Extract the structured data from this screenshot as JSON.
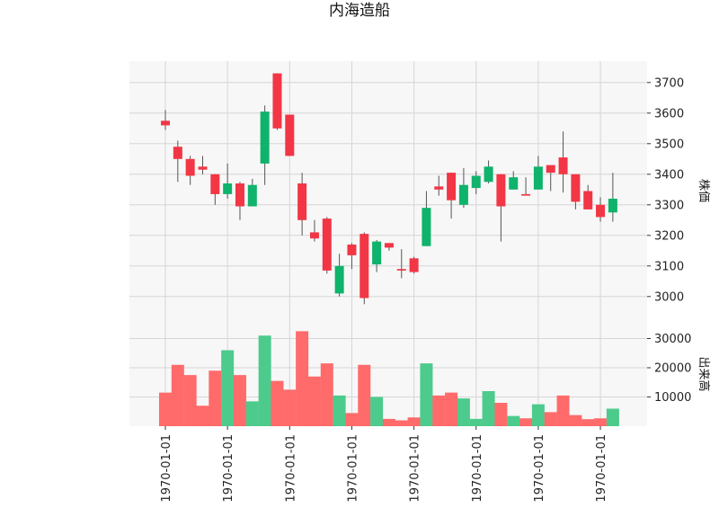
{
  "chart_data": {
    "type": "candlestick",
    "title": "内海造船",
    "up_color": "#f23645",
    "down_color": "#0fb36b",
    "up_volume_color": "#ff6b6b",
    "down_volume_color": "#4ccb8c",
    "price_panel": {
      "ylabel": "株価",
      "ylim": [
        2920,
        3770
      ],
      "yticks": [
        3000,
        3100,
        3200,
        3300,
        3400,
        3500,
        3600,
        3700
      ],
      "ytick_labels": [
        "3000",
        "3100",
        "3200",
        "3300",
        "3400",
        "3500",
        "3600",
        "3700"
      ],
      "grid": true
    },
    "volume_panel": {
      "ylabel": "出来高",
      "ylim": [
        0,
        36000
      ],
      "yticks": [
        10000,
        20000,
        30000
      ],
      "ytick_labels": [
        "10000",
        "20000",
        "30000"
      ],
      "grid": true
    },
    "xtick_positions": [
      0,
      5,
      10,
      15,
      20,
      25,
      30,
      35
    ],
    "xtick_labels": [
      "1970-01-01",
      "1970-01-01",
      "1970-01-01",
      "1970-01-01",
      "1970-01-01",
      "1970-01-01",
      "1970-01-01",
      "1970-01-01"
    ],
    "candles": [
      {
        "open": 3560,
        "high": 3610,
        "low": 3545,
        "close": 3575,
        "volume": 11500
      },
      {
        "open": 3450,
        "high": 3510,
        "low": 3375,
        "close": 3490,
        "volume": 21000
      },
      {
        "open": 3395,
        "high": 3460,
        "low": 3365,
        "close": 3450,
        "volume": 17500
      },
      {
        "open": 3415,
        "high": 3460,
        "low": 3400,
        "close": 3425,
        "volume": 7000
      },
      {
        "open": 3335,
        "high": 3400,
        "low": 3300,
        "close": 3400,
        "volume": 19000
      },
      {
        "open": 3370,
        "high": 3435,
        "low": 3320,
        "close": 3335,
        "volume": 26000
      },
      {
        "open": 3295,
        "high": 3375,
        "low": 3250,
        "close": 3370,
        "volume": 17500
      },
      {
        "open": 3365,
        "high": 3385,
        "low": 3295,
        "close": 3295,
        "volume": 8500
      },
      {
        "open": 3605,
        "high": 3625,
        "low": 3365,
        "close": 3435,
        "volume": 31000
      },
      {
        "open": 3550,
        "high": 3730,
        "low": 3545,
        "close": 3730,
        "volume": 15500
      },
      {
        "open": 3460,
        "high": 3595,
        "low": 3460,
        "close": 3595,
        "volume": 12500
      },
      {
        "open": 3250,
        "high": 3405,
        "low": 3200,
        "close": 3370,
        "volume": 32500
      },
      {
        "open": 3190,
        "high": 3250,
        "low": 3180,
        "close": 3210,
        "volume": 17000
      },
      {
        "open": 3085,
        "high": 3260,
        "low": 3075,
        "close": 3255,
        "volume": 21500
      },
      {
        "open": 3100,
        "high": 3140,
        "low": 3000,
        "close": 3010,
        "volume": 10500
      },
      {
        "open": 3135,
        "high": 3175,
        "low": 3090,
        "close": 3170,
        "volume": 4500
      },
      {
        "open": 2995,
        "high": 3210,
        "low": 2975,
        "close": 3205,
        "volume": 21000
      },
      {
        "open": 3180,
        "high": 3185,
        "low": 3080,
        "close": 3105,
        "volume": 10000
      },
      {
        "open": 3160,
        "high": 3175,
        "low": 3150,
        "close": 3175,
        "volume": 2500
      },
      {
        "open": 3085,
        "high": 3155,
        "low": 3060,
        "close": 3090,
        "volume": 2000
      },
      {
        "open": 3080,
        "high": 3130,
        "low": 3075,
        "close": 3125,
        "volume": 3000
      },
      {
        "open": 3290,
        "high": 3345,
        "low": 3165,
        "close": 3165,
        "volume": 21500
      },
      {
        "open": 3350,
        "high": 3395,
        "low": 3330,
        "close": 3360,
        "volume": 10500
      },
      {
        "open": 3315,
        "high": 3405,
        "low": 3255,
        "close": 3405,
        "volume": 11500
      },
      {
        "open": 3365,
        "high": 3420,
        "low": 3290,
        "close": 3300,
        "volume": 9500
      },
      {
        "open": 3395,
        "high": 3410,
        "low": 3335,
        "close": 3355,
        "volume": 2500
      },
      {
        "open": 3425,
        "high": 3445,
        "low": 3370,
        "close": 3375,
        "volume": 12000
      },
      {
        "open": 3295,
        "high": 3400,
        "low": 3180,
        "close": 3400,
        "volume": 8000
      },
      {
        "open": 3390,
        "high": 3410,
        "low": 3350,
        "close": 3350,
        "volume": 3500
      },
      {
        "open": 3330,
        "high": 3390,
        "low": 3330,
        "close": 3335,
        "volume": 2700
      },
      {
        "open": 3425,
        "high": 3460,
        "low": 3350,
        "close": 3350,
        "volume": 7500
      },
      {
        "open": 3405,
        "high": 3430,
        "low": 3345,
        "close": 3430,
        "volume": 4800
      },
      {
        "open": 3400,
        "high": 3540,
        "low": 3340,
        "close": 3455,
        "volume": 10500
      },
      {
        "open": 3310,
        "high": 3400,
        "low": 3285,
        "close": 3400,
        "volume": 3800
      },
      {
        "open": 3285,
        "high": 3365,
        "low": 3285,
        "close": 3345,
        "volume": 2400
      },
      {
        "open": 3260,
        "high": 3325,
        "low": 3245,
        "close": 3300,
        "volume": 2700
      },
      {
        "open": 3320,
        "high": 3405,
        "low": 3245,
        "close": 3275,
        "volume": 6000
      }
    ]
  }
}
